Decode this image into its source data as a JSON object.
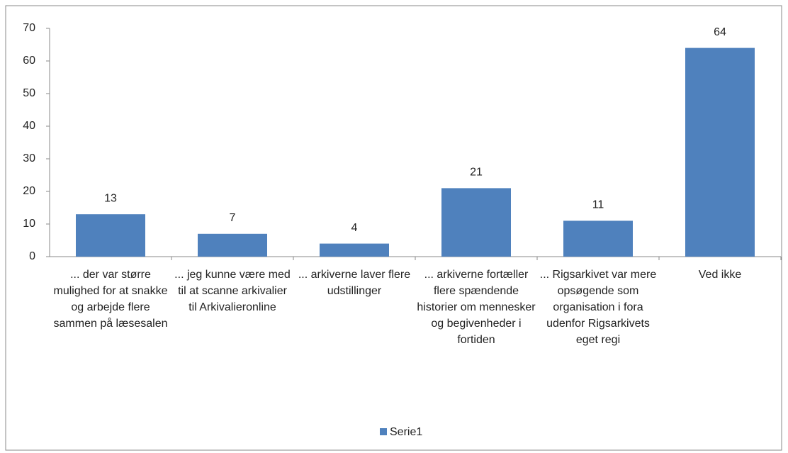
{
  "chart_data": {
    "type": "bar",
    "categories": [
      "... der var større mulighed for at snakke og arbejde flere sammen på læsesalen",
      "... jeg kunne være med til at scanne arkivalier til Arkivalieronline",
      "... arkiverne laver flere udstillinger",
      "... arkiverne fortæller flere spændende historier om mennesker og begivenheder i fortiden",
      "... Rigsarkivet var mere opsøgende som organisation i fora udenfor Rigsarkivets eget regi",
      "Ved ikke"
    ],
    "series": [
      {
        "name": "Serie1",
        "color": "#4f81bd",
        "values": [
          13,
          7,
          4,
          21,
          11,
          64
        ]
      }
    ],
    "ylim": [
      0,
      70
    ],
    "yticks": [
      0,
      10,
      20,
      30,
      40,
      50,
      60,
      70
    ],
    "grid": false,
    "legend": "bottom"
  }
}
